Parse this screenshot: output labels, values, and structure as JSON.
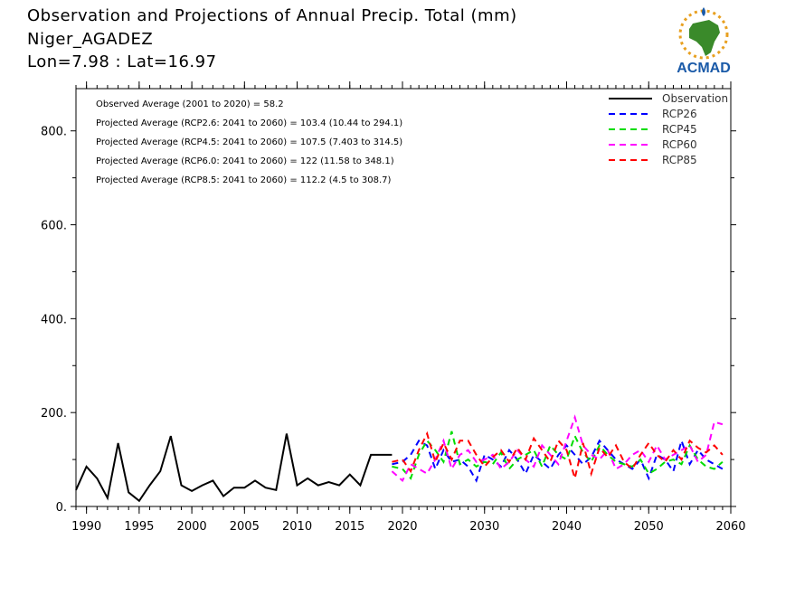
{
  "header": {
    "title": "Observation and Projections of Annual Precip. Total (mm)",
    "location": "Niger_AGADEZ",
    "coords": "Lon=7.98 : Lat=16.97"
  },
  "logo": {
    "text": "ACMAD",
    "colors": {
      "blue": "#1a5aa8",
      "green": "#3a8a2a",
      "orange": "#e8a020"
    }
  },
  "chart_data": {
    "type": "line",
    "xlim": [
      1989,
      2060
    ],
    "ylim": [
      0,
      890
    ],
    "x_ticks": [
      1990,
      1995,
      2000,
      2005,
      2010,
      2015,
      2020,
      2030,
      2040,
      2050,
      2060
    ],
    "y_ticks": [
      0,
      200,
      400,
      600,
      800
    ],
    "y_tick_labels": [
      "0.",
      "200.",
      "400.",
      "600.",
      "800."
    ],
    "annotations": [
      "Observed Average (2001 to 2020) = 58.2",
      "Projected Average (RCP2.6: 2041 to 2060) = 103.4 (10.44 to 294.1)",
      "Projected Average (RCP4.5: 2041 to 2060) = 107.5 (7.403 to 314.5)",
      "Projected Average (RCP6.0: 2041 to 2060) = 122 (11.58 to 348.1)",
      "Projected Average (RCP8.5: 2041 to 2060) = 112.2 (4.5 to 308.7)"
    ],
    "legend_position": "top-right",
    "series": [
      {
        "name": "Observation",
        "color": "#000000",
        "dash": "solid",
        "x": [
          1989,
          1990,
          1991,
          1992,
          1993,
          1994,
          1995,
          1996,
          1997,
          1998,
          1999,
          2000,
          2001,
          2002,
          2003,
          2004,
          2005,
          2006,
          2007,
          2008,
          2009,
          2010,
          2011,
          2012,
          2013,
          2014,
          2015,
          2016,
          2017,
          2018,
          2019
        ],
        "y": [
          35,
          85,
          60,
          18,
          135,
          30,
          12,
          45,
          75,
          150,
          45,
          33,
          45,
          55,
          22,
          40,
          40,
          55,
          40,
          35,
          155,
          45,
          60,
          45,
          52,
          45,
          68,
          45,
          110,
          110,
          110
        ]
      },
      {
        "name": "RCP26",
        "color": "#0000ff",
        "dash": "dashed",
        "x": [
          2019,
          2020,
          2021,
          2022,
          2023,
          2024,
          2025,
          2026,
          2027,
          2028,
          2029,
          2030,
          2031,
          2032,
          2033,
          2034,
          2035,
          2036,
          2037,
          2038,
          2039,
          2040,
          2041,
          2042,
          2043,
          2044,
          2045,
          2046,
          2047,
          2048,
          2049,
          2050,
          2051,
          2052,
          2053,
          2054,
          2055,
          2056,
          2057,
          2058,
          2059
        ],
        "y": [
          90,
          95,
          110,
          140,
          130,
          80,
          120,
          95,
          100,
          85,
          55,
          110,
          100,
          85,
          120,
          100,
          70,
          110,
          95,
          80,
          110,
          130,
          110,
          90,
          105,
          140,
          120,
          100,
          90,
          80,
          100,
          60,
          110,
          100,
          75,
          140,
          90,
          120,
          100,
          90,
          80
        ]
      },
      {
        "name": "RCP45",
        "color": "#00dd00",
        "dash": "dashed",
        "x": [
          2019,
          2020,
          2021,
          2022,
          2023,
          2024,
          2025,
          2026,
          2027,
          2028,
          2029,
          2030,
          2031,
          2032,
          2033,
          2034,
          2035,
          2036,
          2037,
          2038,
          2039,
          2040,
          2041,
          2042,
          2043,
          2044,
          2045,
          2046,
          2047,
          2048,
          2049,
          2050,
          2051,
          2052,
          2053,
          2054,
          2055,
          2056,
          2057,
          2058,
          2059
        ],
        "y": [
          85,
          80,
          60,
          110,
          140,
          120,
          95,
          160,
          90,
          100,
          85,
          95,
          90,
          115,
          80,
          100,
          110,
          120,
          85,
          130,
          110,
          100,
          150,
          115,
          95,
          130,
          110,
          95,
          90,
          85,
          100,
          70,
          80,
          95,
          100,
          90,
          130,
          100,
          85,
          80,
          95
        ]
      },
      {
        "name": "RCP60",
        "color": "#ff00ff",
        "dash": "dashed",
        "x": [
          2019,
          2020,
          2021,
          2022,
          2023,
          2024,
          2025,
          2026,
          2027,
          2028,
          2029,
          2030,
          2031,
          2032,
          2033,
          2034,
          2035,
          2036,
          2037,
          2038,
          2039,
          2040,
          2041,
          2042,
          2043,
          2044,
          2045,
          2046,
          2047,
          2048,
          2049,
          2050,
          2051,
          2052,
          2053,
          2054,
          2055,
          2056,
          2057,
          2058,
          2059
        ],
        "y": [
          75,
          55,
          90,
          80,
          70,
          100,
          140,
          80,
          110,
          120,
          95,
          100,
          110,
          80,
          95,
          120,
          100,
          85,
          130,
          110,
          90,
          140,
          190,
          130,
          110,
          100,
          120,
          80,
          90,
          110,
          120,
          95,
          130,
          100,
          110,
          120,
          130,
          95,
          110,
          180,
          175
        ]
      },
      {
        "name": "RCP85",
        "color": "#ff0000",
        "dash": "dashed",
        "x": [
          2019,
          2020,
          2021,
          2022,
          2023,
          2024,
          2025,
          2026,
          2027,
          2028,
          2029,
          2030,
          2031,
          2032,
          2033,
          2034,
          2035,
          2036,
          2037,
          2038,
          2039,
          2040,
          2041,
          2042,
          2043,
          2044,
          2045,
          2046,
          2047,
          2048,
          2049,
          2050,
          2051,
          2052,
          2053,
          2054,
          2055,
          2056,
          2057,
          2058,
          2059
        ],
        "y": [
          95,
          100,
          75,
          120,
          155,
          95,
          135,
          100,
          140,
          140,
          110,
          85,
          105,
          120,
          95,
          125,
          100,
          145,
          120,
          95,
          140,
          120,
          60,
          135,
          70,
          125,
          105,
          130,
          95,
          80,
          110,
          135,
          110,
          95,
          120,
          100,
          140,
          125,
          115,
          130,
          110
        ]
      }
    ]
  }
}
